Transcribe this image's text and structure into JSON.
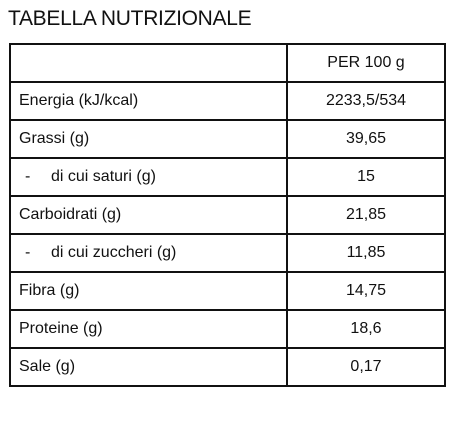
{
  "title": "TABELLA NUTRIZIONALE",
  "table": {
    "header": "PER 100 g",
    "rows": [
      {
        "label": "Energia (kJ/kcal)",
        "value": "2233,5/534"
      },
      {
        "label": "Grassi (g)",
        "value": "39,65"
      },
      {
        "label": "di cui saturi (g)",
        "value": "15",
        "prefix": "-"
      },
      {
        "label": "Carboidrati (g)",
        "value": "21,85"
      },
      {
        "label": "di cui zuccheri (g)",
        "value": "11,85",
        "prefix": "-"
      },
      {
        "label": "Fibra (g)",
        "value": "14,75"
      },
      {
        "label": "Proteine (g)",
        "value": "18,6"
      },
      {
        "label": "Sale (g)",
        "value": "0,17"
      }
    ]
  }
}
